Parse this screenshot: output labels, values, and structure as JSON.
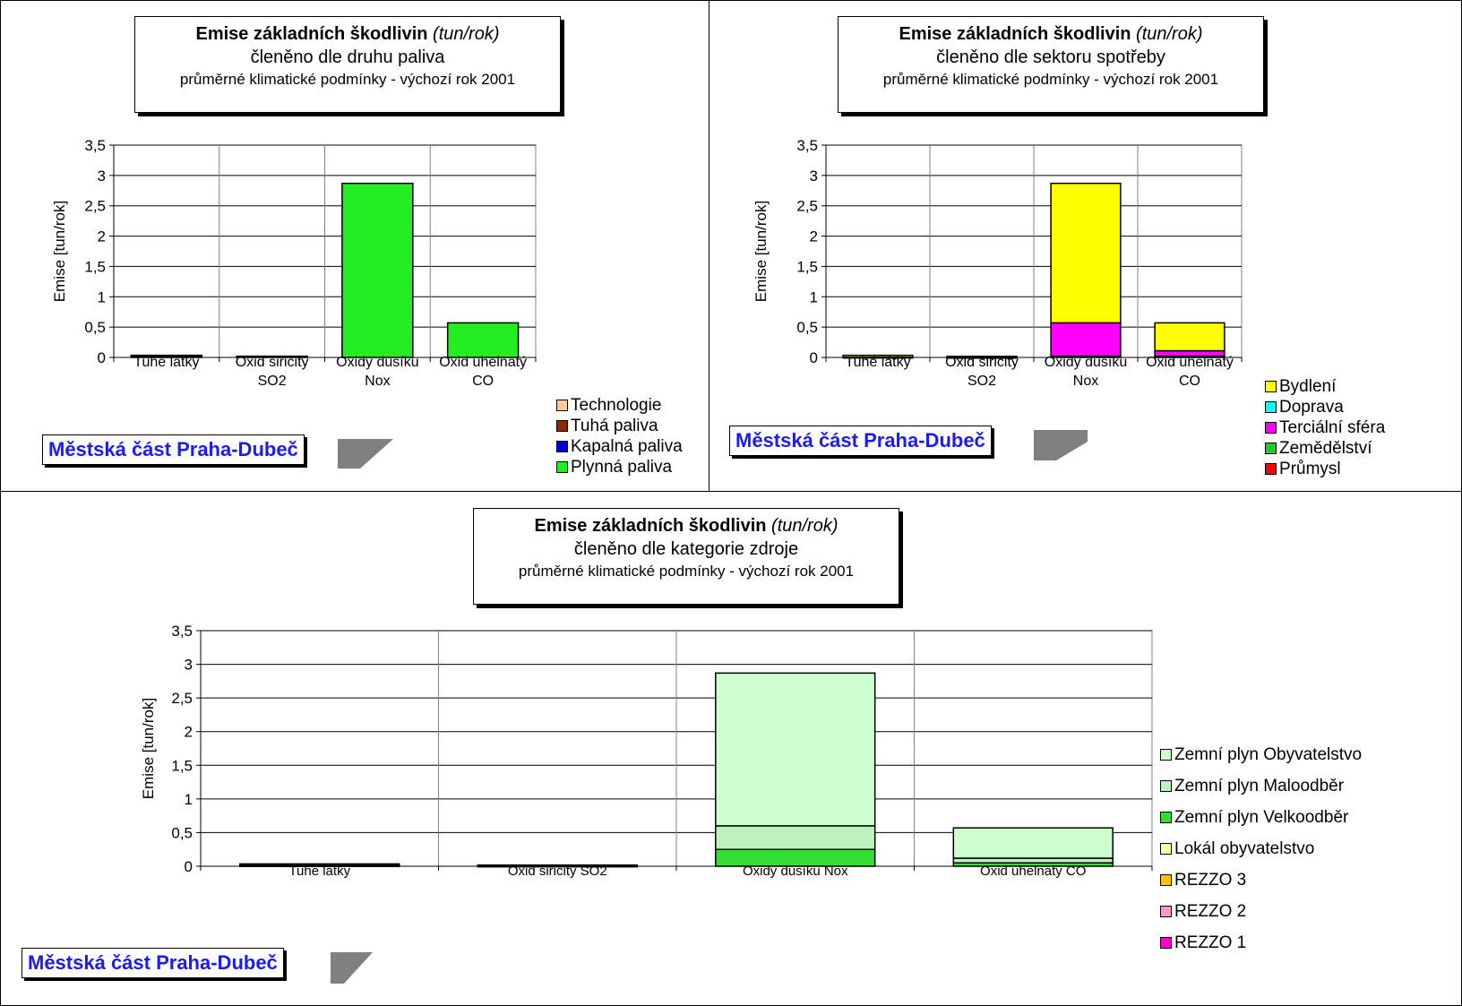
{
  "colors": {
    "Technologie": "#f9c89b",
    "Tuhá paliva": "#8b2a0a",
    "Kapalná paliva": "#0000cc",
    "Plynná paliva": "#22ee22",
    "Bydlení": "#ffff00",
    "Doprava": "#00ffff",
    "Terciální sféra": "#ff00ff",
    "Zemědělství": "#22cc22",
    "Průmysl": "#ff0000",
    "Zemní plyn Obyvatelstvo": "#ccffcc",
    "Zemní plyn Maloodběr": "#bdf2bd",
    "Zemní plyn Velkoodběr": "#33dd33",
    "Lokál obyvatelstvo": "#ffffaa",
    "REZZO 3": "#ffc000",
    "REZZO 2": "#ff99cc",
    "REZZO 1": "#ff00cc",
    "badge_text": "#1a1aff"
  },
  "badge_label": "Městská část Praha-Dubeč",
  "chart_data": [
    {
      "type": "bar",
      "stacked": true,
      "title": "Emise základních škodlivin",
      "title_unit": "(tun/rok)",
      "subtitle": "členěno dle druhu paliva",
      "subtitle2": "průměrné klimatické podmínky - výchozí rok 2001",
      "ylabel": "Emise [tun/rok]",
      "xlabel": "",
      "ylim": [
        0,
        3.5
      ],
      "yticks": [
        "0",
        "0,5",
        "1",
        "1,5",
        "2",
        "2,5",
        "3",
        "3,5"
      ],
      "grid": true,
      "legend_position": "bottom-right",
      "categories": [
        [
          "Tuhé látky"
        ],
        [
          "Oxid siřičitý",
          "SO2"
        ],
        [
          "Oxidy dusíku",
          "Nox"
        ],
        [
          "Oxid uhelnatý",
          "CO"
        ]
      ],
      "series": [
        {
          "name": "Plynná paliva",
          "values": [
            0.03,
            0.015,
            2.87,
            0.57
          ]
        },
        {
          "name": "Kapalná paliva",
          "values": [
            0,
            0,
            0,
            0
          ]
        },
        {
          "name": "Tuhá paliva",
          "values": [
            0.005,
            0.005,
            0,
            0
          ]
        },
        {
          "name": "Technologie",
          "values": [
            0,
            0,
            0,
            0
          ]
        }
      ],
      "legend": [
        "Technologie",
        "Tuhá paliva",
        "Kapalná paliva",
        "Plynná paliva"
      ]
    },
    {
      "type": "bar",
      "stacked": true,
      "title": "Emise základních škodlivin",
      "title_unit": "(tun/rok)",
      "subtitle": "členěno dle sektoru spotřeby",
      "subtitle2": "průměrné klimatické podmínky - výchozí rok 2001",
      "ylabel": "Emise [tun/rok]",
      "xlabel": "",
      "ylim": [
        0,
        3.5
      ],
      "yticks": [
        "0",
        "0,5",
        "1",
        "1,5",
        "2",
        "2,5",
        "3",
        "3,5"
      ],
      "grid": true,
      "legend_position": "bottom-right",
      "categories": [
        [
          "Tuhé látky"
        ],
        [
          "Oxid siřičitý",
          "SO2"
        ],
        [
          "Oxidy dusíku",
          "Nox"
        ],
        [
          "Oxid uhelnatý",
          "CO"
        ]
      ],
      "series": [
        {
          "name": "Průmysl",
          "values": [
            0,
            0,
            0.02,
            0.02
          ]
        },
        {
          "name": "Zemědělství",
          "values": [
            0,
            0,
            0,
            0
          ]
        },
        {
          "name": "Terciální sféra",
          "values": [
            0.005,
            0.003,
            0.55,
            0.09
          ]
        },
        {
          "name": "Doprava",
          "values": [
            0,
            0,
            0,
            0
          ]
        },
        {
          "name": "Bydlení",
          "values": [
            0.03,
            0.015,
            2.3,
            0.46
          ]
        }
      ],
      "legend": [
        "Bydlení",
        "Doprava",
        "Terciální sféra",
        "Zemědělství",
        "Průmysl"
      ]
    },
    {
      "type": "bar",
      "stacked": true,
      "title": "Emise základních škodlivin",
      "title_unit": "(tun/rok)",
      "subtitle": "členěno dle kategorie zdroje",
      "subtitle2": "průměrné klimatické podmínky - výchozí rok 2001",
      "ylabel": "Emise [tun/rok]",
      "xlabel": "",
      "ylim": [
        0,
        3.5
      ],
      "yticks": [
        "0",
        "0,5",
        "1",
        "1,5",
        "2",
        "2,5",
        "3",
        "3,5"
      ],
      "grid": true,
      "legend_position": "right",
      "categories": [
        [
          "Tuhé látky"
        ],
        [
          "Oxid siřičitý SO2"
        ],
        [
          "Oxidy dusíku Nox"
        ],
        [
          "Oxid uhelnatý CO"
        ]
      ],
      "series": [
        {
          "name": "REZZO 1",
          "values": [
            0,
            0,
            0,
            0
          ]
        },
        {
          "name": "REZZO 2",
          "values": [
            0,
            0,
            0,
            0
          ]
        },
        {
          "name": "REZZO 3",
          "values": [
            0,
            0,
            0,
            0
          ]
        },
        {
          "name": "Lokál obyvatelstvo",
          "values": [
            0.01,
            0.005,
            0,
            0
          ]
        },
        {
          "name": "Zemní plyn Velkoodběr",
          "values": [
            0,
            0,
            0.25,
            0.05
          ]
        },
        {
          "name": "Zemní plyn Maloodběr",
          "values": [
            0.005,
            0.003,
            0.35,
            0.07
          ]
        },
        {
          "name": "Zemní plyn Obyvatelstvo",
          "values": [
            0.02,
            0.01,
            2.27,
            0.45
          ]
        }
      ],
      "legend": [
        "Zemní plyn Obyvatelstvo",
        "Zemní plyn Maloodběr",
        "Zemní plyn Velkoodběr",
        "Lokál obyvatelstvo",
        "REZZO 3",
        "REZZO 2",
        "REZZO 1"
      ]
    }
  ]
}
